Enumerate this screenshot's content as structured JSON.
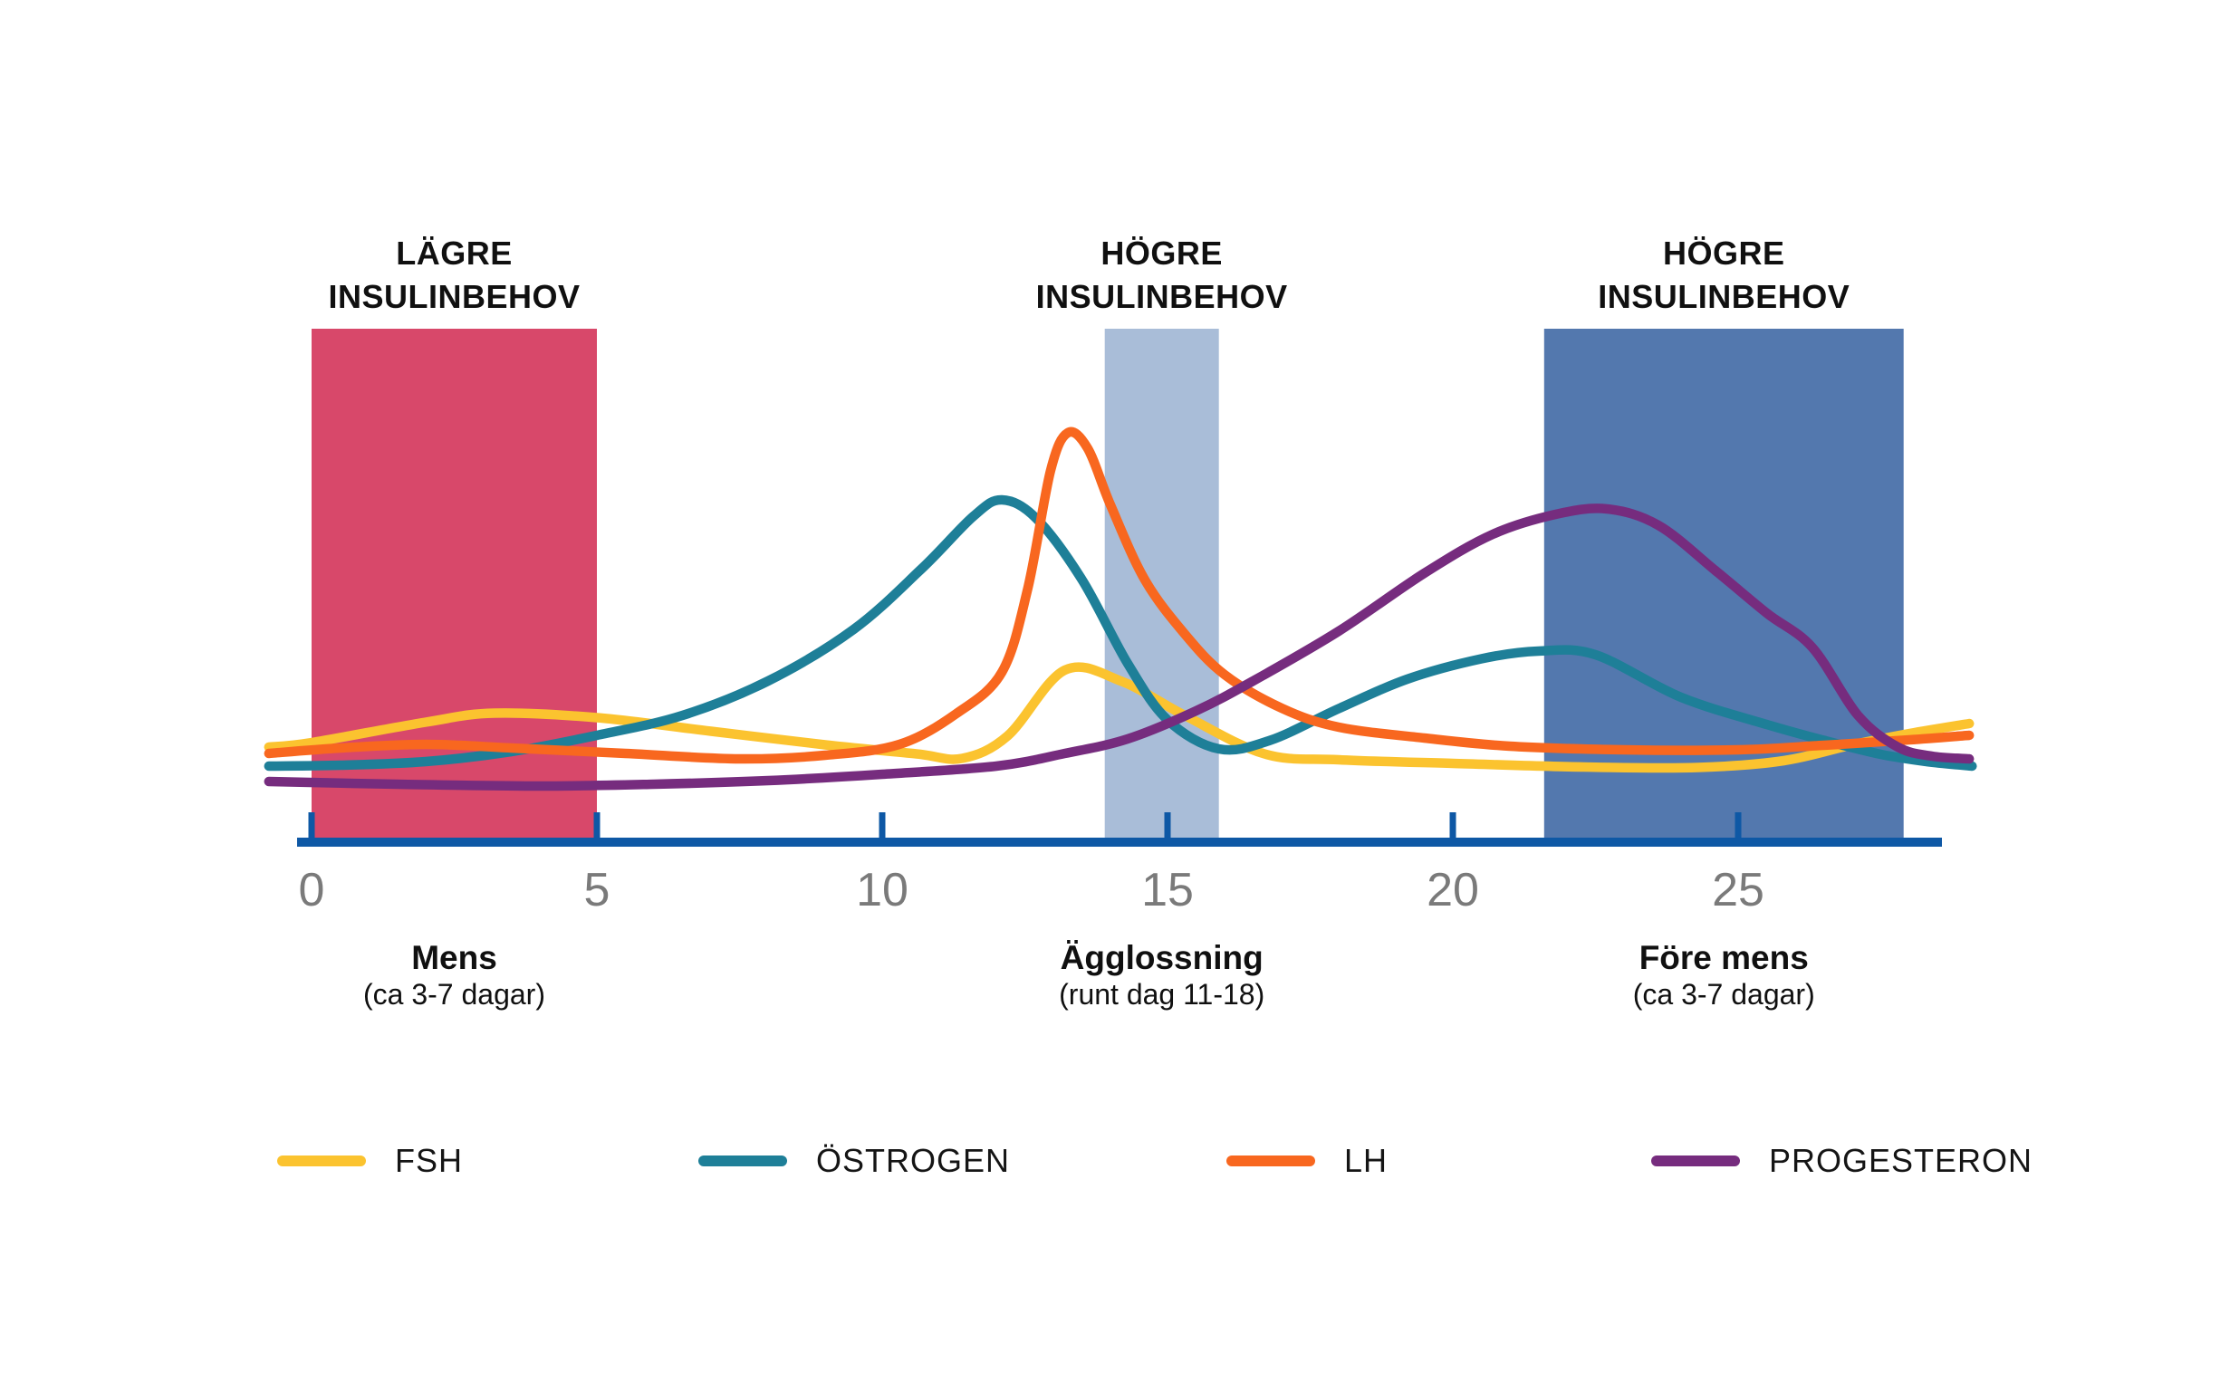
{
  "colors": {
    "axis": "#0E58A5",
    "tick_text": "#7A7A7A",
    "heading_text": "#101010",
    "band_mens": "#D8486A",
    "band_ovulation": "#A9BDD8",
    "band_premens": "#5378AE"
  },
  "legend": {
    "items": [
      {
        "label": "FSH",
        "color": "#FBC32F"
      },
      {
        "label": "ÖSTROGEN",
        "color": "#1E7F98"
      },
      {
        "label": "LH",
        "color": "#F8671F"
      },
      {
        "label": "PROGESTERON",
        "color": "#762C7E"
      }
    ]
  },
  "chart_data": {
    "type": "line",
    "title": "",
    "xlabel": "",
    "ylabel": "",
    "grid": false,
    "legend_position": "bottom",
    "x_axis": {
      "ticks": [
        0,
        5,
        10,
        15,
        20,
        25
      ],
      "range": [
        -0.75,
        29.1
      ]
    },
    "y_axis": {
      "visible": false,
      "range": [
        0,
        100
      ]
    },
    "bands": [
      {
        "heading": [
          "LÄGRE",
          "INSULINBEHOV"
        ],
        "from_day": 0,
        "to_day": 5,
        "color": "#D8486A",
        "annotation": {
          "title": "Mens",
          "sub": "(ca 3-7 dagar)"
        }
      },
      {
        "heading": [
          "HÖGRE",
          "INSULINBEHOV"
        ],
        "from_day": 13.9,
        "to_day": 15.9,
        "color": "#A9BDD8",
        "annotation": {
          "title": "Ägglossning",
          "sub": "(runt dag 11-18)"
        }
      },
      {
        "heading": [
          "HÖGRE",
          "INSULINBEHOV"
        ],
        "from_day": 21.6,
        "to_day": 27.9,
        "color": "#5378AE",
        "annotation": {
          "title": "Före mens",
          "sub": "(ca 3-7 dagar)"
        }
      }
    ],
    "series": [
      {
        "name": "FSH",
        "color": "#FBC32F",
        "points": [
          [
            -0.75,
            20
          ],
          [
            0,
            21
          ],
          [
            2,
            25.5
          ],
          [
            3.2,
            27.5
          ],
          [
            5,
            26.5
          ],
          [
            7,
            23.5
          ],
          [
            9,
            20.5
          ],
          [
            10.6,
            18.5
          ],
          [
            11.4,
            17.5
          ],
          [
            12.2,
            22.5
          ],
          [
            13.2,
            37
          ],
          [
            14.2,
            34.5
          ],
          [
            15.3,
            27
          ],
          [
            16.7,
            18.5
          ],
          [
            18,
            17.2
          ],
          [
            20,
            16.4
          ],
          [
            22.3,
            15.6
          ],
          [
            24.3,
            15.5
          ],
          [
            25.8,
            17
          ],
          [
            27,
            20.5
          ],
          [
            28,
            23
          ],
          [
            29.05,
            25.2
          ]
        ]
      },
      {
        "name": "ÖSTROGEN",
        "color": "#1E7F98",
        "points": [
          [
            -0.75,
            15.8
          ],
          [
            0.5,
            16
          ],
          [
            2,
            16.8
          ],
          [
            3.5,
            19
          ],
          [
            5,
            22.6
          ],
          [
            6.5,
            27
          ],
          [
            8,
            34.6
          ],
          [
            9.5,
            46
          ],
          [
            10.7,
            59.5
          ],
          [
            11.6,
            71
          ],
          [
            12.1,
            74.6
          ],
          [
            12.7,
            70.5
          ],
          [
            13.5,
            57
          ],
          [
            14.3,
            38.5
          ],
          [
            15,
            26
          ],
          [
            15.9,
            19.6
          ],
          [
            16.8,
            21.5
          ],
          [
            18,
            28.5
          ],
          [
            19.2,
            35
          ],
          [
            20.5,
            39.5
          ],
          [
            21.5,
            41.2
          ],
          [
            22.5,
            40.4
          ],
          [
            24,
            31
          ],
          [
            25.5,
            25
          ],
          [
            26.5,
            21.5
          ],
          [
            27.5,
            18.4
          ],
          [
            28.3,
            16.8
          ],
          [
            29.1,
            15.8
          ]
        ]
      },
      {
        "name": "LH",
        "color": "#F8671F",
        "points": [
          [
            -0.75,
            18.6
          ],
          [
            0.5,
            19.8
          ],
          [
            2,
            20.6
          ],
          [
            3.5,
            19.8
          ],
          [
            5.5,
            18.6
          ],
          [
            7.5,
            17.4
          ],
          [
            9,
            18.2
          ],
          [
            10.3,
            20.6
          ],
          [
            11.3,
            27.4
          ],
          [
            12.1,
            36.6
          ],
          [
            12.55,
            55
          ],
          [
            12.95,
            81
          ],
          [
            13.25,
            89.4
          ],
          [
            13.6,
            86
          ],
          [
            14,
            73.5
          ],
          [
            14.6,
            57
          ],
          [
            15.3,
            45
          ],
          [
            16,
            36
          ],
          [
            17,
            28.6
          ],
          [
            18,
            24.4
          ],
          [
            19.5,
            22
          ],
          [
            21,
            20.2
          ],
          [
            23,
            19.4
          ],
          [
            25,
            19.4
          ],
          [
            26.5,
            20.4
          ],
          [
            28,
            21.6
          ],
          [
            29.05,
            22.6
          ]
        ]
      },
      {
        "name": "PROGESTERON",
        "color": "#762C7E",
        "points": [
          [
            -0.75,
            12.4
          ],
          [
            1.5,
            11.8
          ],
          [
            4,
            11.4
          ],
          [
            6,
            11.8
          ],
          [
            8,
            12.6
          ],
          [
            10,
            14
          ],
          [
            12,
            15.8
          ],
          [
            13.2,
            18.6
          ],
          [
            14.3,
            21.8
          ],
          [
            15.5,
            28
          ],
          [
            16.5,
            34.6
          ],
          [
            18,
            45.6
          ],
          [
            19.5,
            58.4
          ],
          [
            20.7,
            67
          ],
          [
            21.8,
            71.4
          ],
          [
            22.7,
            72.6
          ],
          [
            23.6,
            69
          ],
          [
            24.6,
            59
          ],
          [
            25.5,
            49.6
          ],
          [
            26.3,
            42
          ],
          [
            27.1,
            27
          ],
          [
            27.8,
            20
          ],
          [
            28.4,
            18
          ],
          [
            29.05,
            17.4
          ]
        ]
      }
    ]
  }
}
